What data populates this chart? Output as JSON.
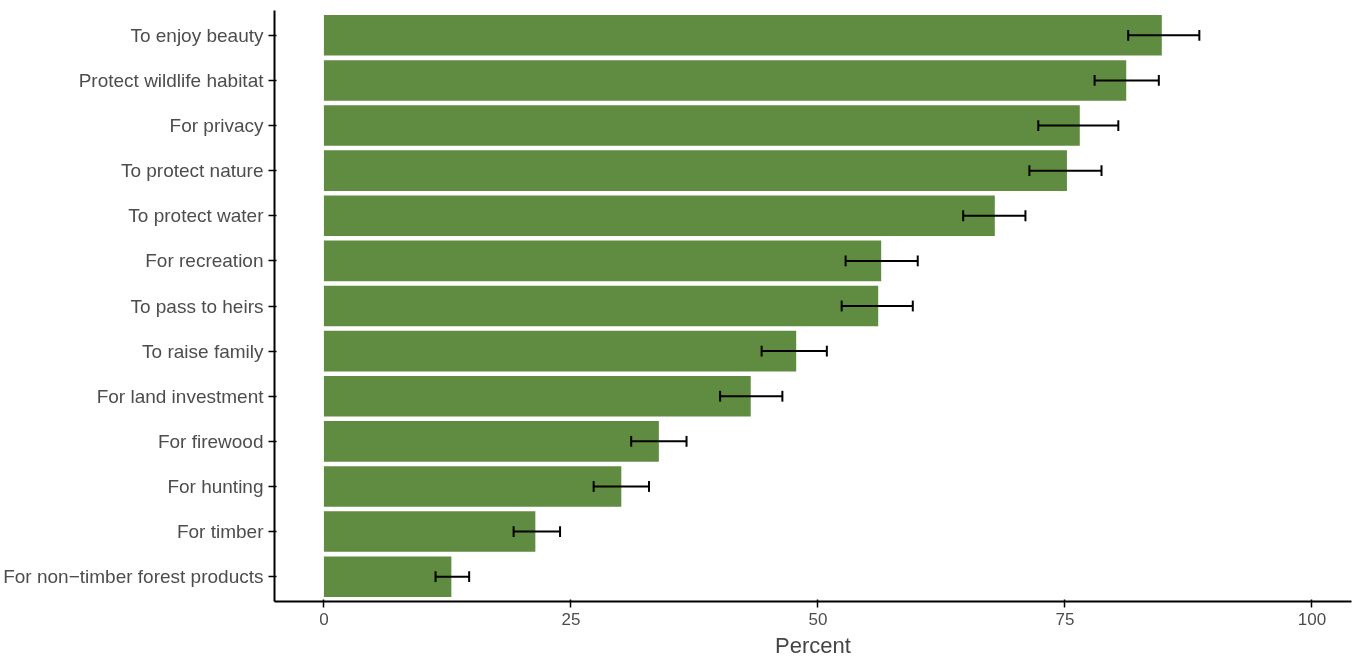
{
  "chart_data": {
    "type": "bar",
    "orientation": "horizontal",
    "xlabel": "Percent",
    "categories": [
      "To enjoy beauty",
      "Protect wildlife habitat",
      "For privacy",
      "To protect nature",
      "To protect water",
      "For recreation",
      "To pass to heirs",
      "To raise family",
      "For land investment",
      "For firewood",
      "For hunting",
      "For timber",
      "For non−timber forest products"
    ],
    "values": [
      84.8,
      81.2,
      76.5,
      75.2,
      67.9,
      56.4,
      56.1,
      47.8,
      43.2,
      33.9,
      30.1,
      21.4,
      12.9
    ],
    "errors": [
      [
        81.4,
        88.6
      ],
      [
        78.0,
        84.5
      ],
      [
        72.3,
        80.4
      ],
      [
        71.4,
        78.7
      ],
      [
        64.7,
        71.0
      ],
      [
        52.8,
        60.1
      ],
      [
        52.4,
        59.6
      ],
      [
        44.3,
        50.9
      ],
      [
        40.1,
        46.4
      ],
      [
        31.1,
        36.7
      ],
      [
        27.3,
        32.9
      ],
      [
        19.2,
        23.9
      ],
      [
        11.3,
        14.7
      ]
    ],
    "color": "#5f8c40",
    "xlim": [
      -5,
      104
    ],
    "xticks": [
      0,
      25,
      50,
      75,
      100
    ],
    "grid": false
  }
}
